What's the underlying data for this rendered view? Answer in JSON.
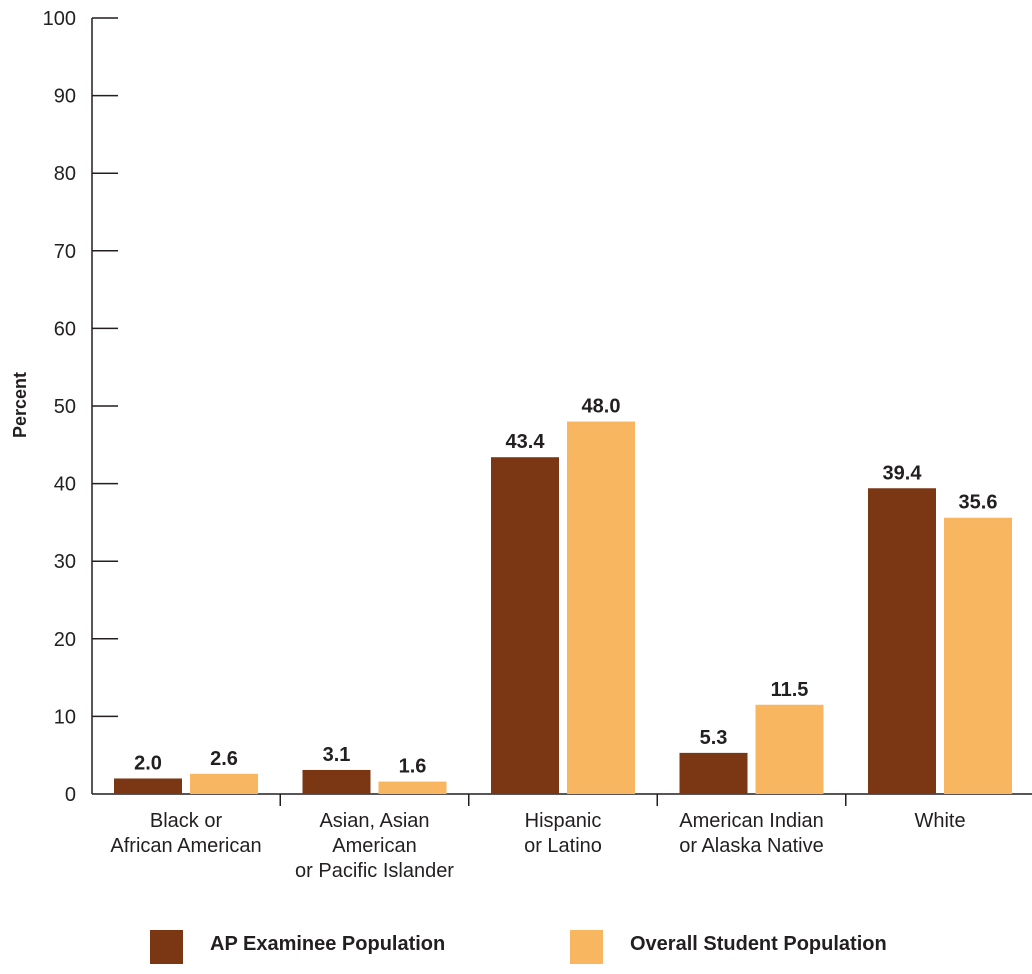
{
  "chart_data": {
    "type": "bar",
    "title": "",
    "xlabel": "",
    "ylabel": "Percent",
    "ylim": [
      0,
      100
    ],
    "yticks": [
      0,
      10,
      20,
      30,
      40,
      50,
      60,
      70,
      80,
      90,
      100
    ],
    "grid": false,
    "legend_position": "bottom",
    "categories": [
      [
        "Black or",
        "African American"
      ],
      [
        "Asian, Asian",
        "American",
        "or Pacific Islander"
      ],
      [
        "Hispanic",
        "or Latino"
      ],
      [
        "American Indian",
        "or Alaska Native"
      ],
      [
        "White"
      ]
    ],
    "series": [
      {
        "name": "AP Examinee Population",
        "color": "#7b3614",
        "values": [
          2.0,
          3.1,
          43.4,
          5.3,
          39.4
        ],
        "labels": [
          "2.0",
          "3.1",
          "43.4",
          "5.3",
          "39.4"
        ]
      },
      {
        "name": "Overall Student Population",
        "color": "#f9b660",
        "values": [
          2.6,
          1.6,
          48.0,
          11.5,
          35.6
        ],
        "labels": [
          "2.6",
          "1.6",
          "48.0",
          "11.5",
          "35.6"
        ]
      }
    ]
  }
}
